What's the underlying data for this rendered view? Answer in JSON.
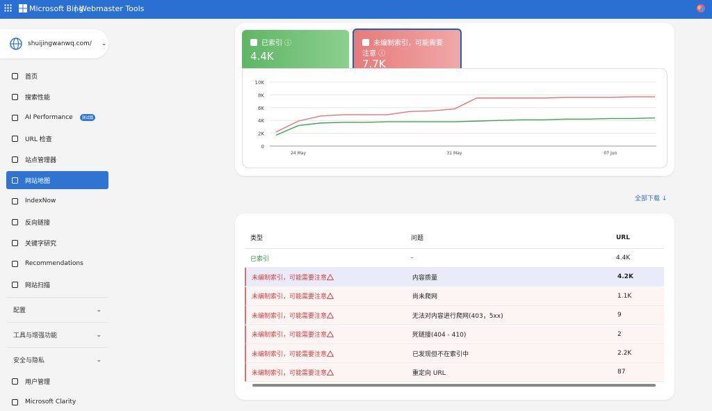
{
  "header": {
    "brand": "Microsoft Bing",
    "product": "Webmaster Tools"
  },
  "sidebar": {
    "site": "shuijingwanwq.com/",
    "nav": [
      {
        "label": "首页"
      },
      {
        "label": "搜索性能"
      },
      {
        "label": "AI Performance",
        "badge": "测试版"
      },
      {
        "label": "URL 检查"
      },
      {
        "label": "站点管理器"
      },
      {
        "label": "网站地图"
      },
      {
        "label": "IndexNow"
      },
      {
        "label": "反向链接"
      },
      {
        "label": "关键字研究"
      },
      {
        "label": "Recommendations"
      },
      {
        "label": "网站扫描"
      }
    ],
    "sections": [
      "配置",
      "工具与增强功能",
      "安全与隐私"
    ],
    "footer_nav": [
      "用户管理",
      "Microsoft Clarity"
    ]
  },
  "chart_data": {
    "type": "line",
    "categories": [
      null,
      "24 May",
      null,
      null,
      null,
      null,
      null,
      null,
      "31 May",
      null,
      null,
      null,
      null,
      null,
      null,
      "07 Jun",
      null,
      null
    ],
    "series": [
      {
        "name": "已索引",
        "summary": "4.4K",
        "color": "#3ea44e",
        "values": [
          1700,
          3200,
          3600,
          3700,
          3700,
          3800,
          3800,
          3800,
          3800,
          3900,
          4000,
          4100,
          4100,
          4200,
          4200,
          4300,
          4300,
          4400
        ]
      },
      {
        "name": "未编制索引，可能需要注意",
        "summary": "7.7K",
        "color": "#e57373",
        "values": [
          2200,
          3900,
          4700,
          4900,
          4900,
          4900,
          5400,
          5500,
          5800,
          7500,
          7500,
          7500,
          7500,
          7600,
          7600,
          7600,
          7700,
          7700
        ]
      }
    ],
    "ylim": [
      0,
      10000
    ],
    "yticks": [
      0,
      {
        "value": 2000,
        "label": "2K"
      },
      {
        "value": 4000,
        "label": "4K"
      },
      {
        "value": 6000,
        "label": "6K"
      },
      {
        "value": 8000,
        "label": "8K"
      },
      {
        "value": 10000,
        "label": "10K"
      }
    ],
    "grid": true
  },
  "download": "全部下载",
  "table": {
    "header": [
      "类型",
      "问题",
      "URL"
    ],
    "rows": [
      [
        "已索引",
        "-",
        "4.4K"
      ],
      [
        "未编制索引，可能需要注意",
        "内容质量",
        "4.2K"
      ],
      [
        "未编制索引，可能需要注意",
        "尚未爬网",
        "1.1K"
      ],
      [
        "未编制索引，可能需要注意",
        "无法对内容进行爬网(403，5xx)",
        "9"
      ],
      [
        "未编制索引，可能需要注意",
        "死链接(404 - 410)",
        "2"
      ],
      [
        "未编制索引，可能需要注意",
        "已发现但不在索引中",
        "2.2K"
      ],
      [
        "未编制索引，可能需要注意",
        "重定向 URL",
        "87"
      ]
    ]
  }
}
